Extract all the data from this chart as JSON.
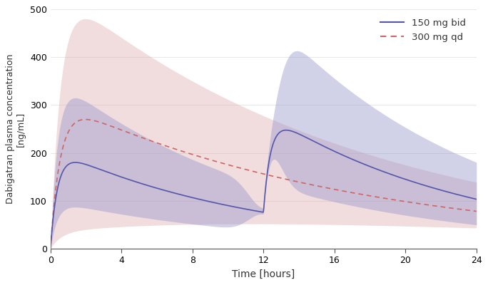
{
  "xlabel": "Time [hours]",
  "ylabel": "Dabigatran plasma concentration\n[ng/mL]",
  "xlim": [
    0,
    24
  ],
  "ylim": [
    0,
    500
  ],
  "xticks": [
    0,
    4,
    8,
    12,
    16,
    20,
    24
  ],
  "yticks": [
    0,
    100,
    200,
    300,
    400,
    500
  ],
  "bid_color": "#5555aa",
  "bid_fill_color": "#9999cc",
  "od_color": "#cc6666",
  "od_fill_color": "#ddaaaa",
  "legend_bid": "150 mg bid",
  "legend_od": "300 mg qd",
  "figsize": [
    6.84,
    4.0
  ],
  "dpi": 100
}
